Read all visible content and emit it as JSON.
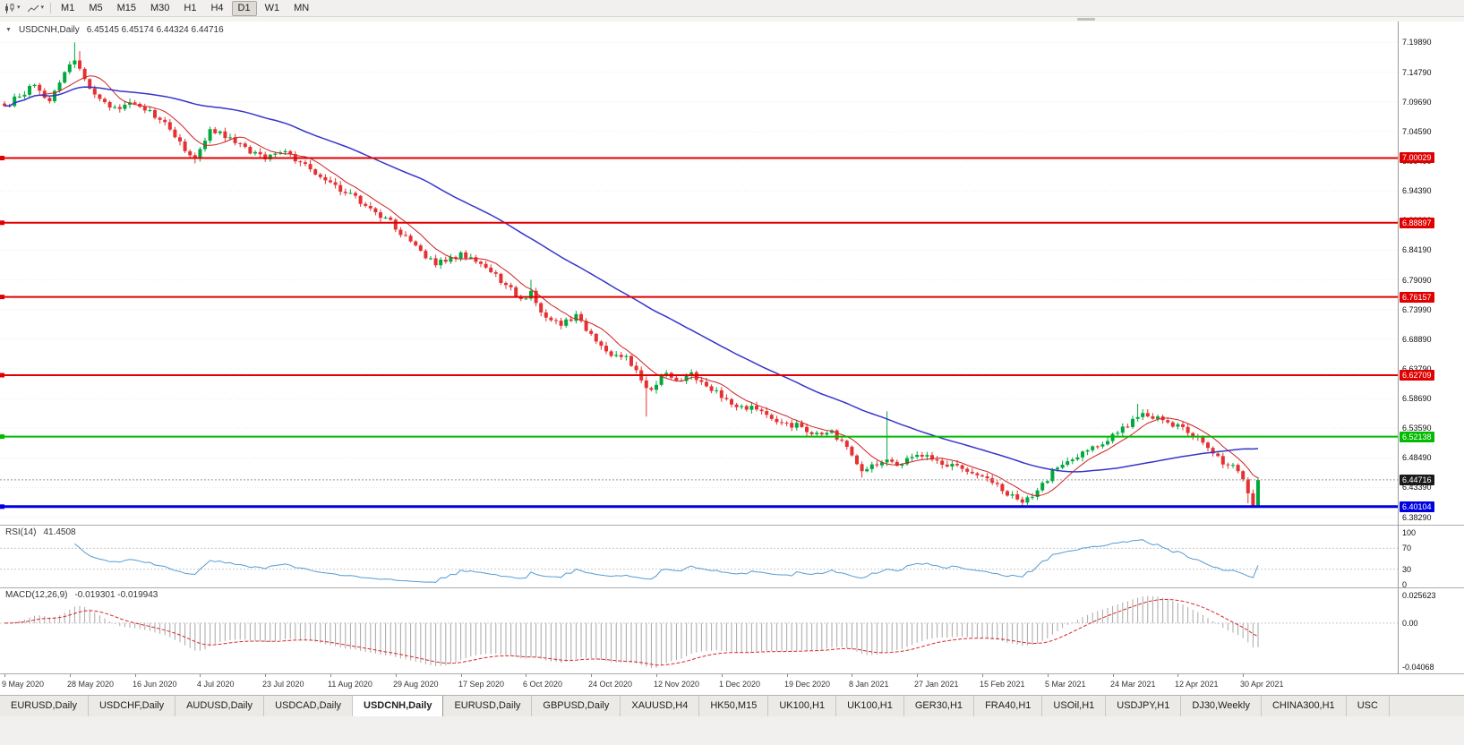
{
  "toolbar": {
    "timeframes": [
      "M1",
      "M5",
      "M15",
      "M30",
      "H1",
      "H4",
      "D1",
      "W1",
      "MN"
    ],
    "active_timeframe": "D1",
    "chart_type_icon": "candlestick-chart",
    "dropdown_icon": "▾"
  },
  "window": {
    "symbol_header": {
      "collapse_icon": "▼",
      "title": "USDCNH,Daily",
      "ohlc_text": "6.45145 6.45174 6.44324 6.44716"
    }
  },
  "indicator_labels": {
    "rsi": {
      "name": "RSI(14)",
      "value": "41.4508"
    },
    "macd": {
      "name": "MACD(12,26,9)",
      "values": "-0.019301 -0.019943"
    }
  },
  "price_axis": {
    "ticks": [
      "7.19890",
      "7.14790",
      "7.09690",
      "7.04590",
      "6.99490",
      "6.94390",
      "6.89290",
      "6.84190",
      "6.79090",
      "6.73990",
      "6.68890",
      "6.63790",
      "6.58690",
      "6.53590",
      "6.48490",
      "6.43390",
      "6.38290"
    ],
    "current_price": {
      "value": "6.44716",
      "bg": "#1a1a1a"
    }
  },
  "chart_data": {
    "type": "candlestick",
    "symbol": "USDCNH",
    "timeframe": "Daily",
    "current_ohlc": {
      "open": 6.45145,
      "high": 6.45174,
      "low": 6.44324,
      "close": 6.44716
    },
    "price_range_visible": [
      6.37,
      7.235
    ],
    "bar_count": 251,
    "noise": 0.013,
    "up_color": "#00a83e",
    "down_color": "#e53131",
    "close_anchors": [
      [
        0,
        7.09
      ],
      [
        3,
        7.106
      ],
      [
        6,
        7.126
      ],
      [
        9,
        7.098
      ],
      [
        12,
        7.148
      ],
      [
        14,
        7.168
      ],
      [
        16,
        7.136
      ],
      [
        19,
        7.102
      ],
      [
        22,
        7.088
      ],
      [
        25,
        7.096
      ],
      [
        28,
        7.082
      ],
      [
        32,
        7.062
      ],
      [
        36,
        7.012
      ],
      [
        38,
        7.0
      ],
      [
        41,
        7.05
      ],
      [
        45,
        7.036
      ],
      [
        49,
        7.008
      ],
      [
        52,
        6.998
      ],
      [
        56,
        7.012
      ],
      [
        60,
        6.99
      ],
      [
        64,
        6.962
      ],
      [
        68,
        6.94
      ],
      [
        72,
        6.918
      ],
      [
        76,
        6.898
      ],
      [
        79,
        6.868
      ],
      [
        82,
        6.85
      ],
      [
        86,
        6.816
      ],
      [
        89,
        6.83
      ],
      [
        91,
        6.838
      ],
      [
        94,
        6.822
      ],
      [
        97,
        6.804
      ],
      [
        100,
        6.782
      ],
      [
        103,
        6.758
      ],
      [
        105,
        6.772
      ],
      [
        108,
        6.726
      ],
      [
        111,
        6.712
      ],
      [
        114,
        6.732
      ],
      [
        117,
        6.698
      ],
      [
        120,
        6.668
      ],
      [
        124,
        6.66
      ],
      [
        127,
        6.618
      ],
      [
        129,
        6.602
      ],
      [
        131,
        6.628
      ],
      [
        134,
        6.618
      ],
      [
        137,
        6.632
      ],
      [
        140,
        6.608
      ],
      [
        143,
        6.588
      ],
      [
        146,
        6.572
      ],
      [
        150,
        6.568
      ],
      [
        153,
        6.552
      ],
      [
        156,
        6.545
      ],
      [
        159,
        6.538
      ],
      [
        162,
        6.528
      ],
      [
        165,
        6.532
      ],
      [
        168,
        6.504
      ],
      [
        171,
        6.462
      ],
      [
        174,
        6.472
      ],
      [
        176,
        6.482
      ],
      [
        179,
        6.474
      ],
      [
        182,
        6.49
      ],
      [
        185,
        6.482
      ],
      [
        188,
        6.47
      ],
      [
        191,
        6.466
      ],
      [
        194,
        6.455
      ],
      [
        197,
        6.442
      ],
      [
        200,
        6.42
      ],
      [
        203,
        6.408
      ],
      [
        205,
        6.418
      ],
      [
        207,
        6.442
      ],
      [
        210,
        6.468
      ],
      [
        213,
        6.482
      ],
      [
        216,
        6.498
      ],
      [
        219,
        6.508
      ],
      [
        222,
        6.528
      ],
      [
        225,
        6.552
      ],
      [
        227,
        6.562
      ],
      [
        229,
        6.552
      ],
      [
        232,
        6.546
      ],
      [
        235,
        6.538
      ],
      [
        238,
        6.52
      ],
      [
        240,
        6.502
      ],
      [
        242,
        6.488
      ],
      [
        244,
        6.472
      ],
      [
        246,
        6.462
      ],
      [
        247,
        6.448
      ],
      [
        248,
        6.424
      ],
      [
        249,
        6.403
      ],
      [
        250,
        6.44716
      ]
    ],
    "wick_overrides": [
      {
        "i": 14,
        "h": 7.199
      },
      {
        "i": 15,
        "h": 7.184
      },
      {
        "i": 38,
        "l": 6.991
      },
      {
        "i": 105,
        "h": 6.791
      },
      {
        "i": 128,
        "l": 6.556
      },
      {
        "i": 171,
        "l": 6.451
      },
      {
        "i": 176,
        "h": 6.565
      },
      {
        "i": 203,
        "l": 6.401
      },
      {
        "i": 204,
        "l": 6.404
      },
      {
        "i": 226,
        "h": 6.578
      },
      {
        "i": 248,
        "l": 6.407
      },
      {
        "i": 249,
        "l": 6.4
      },
      {
        "i": 250,
        "h": 6.4517,
        "l": 6.4432
      }
    ],
    "horizontal_lines": [
      {
        "price": 7.00029,
        "label": "7.00029",
        "color": "#e00000",
        "width": 2
      },
      {
        "price": 6.88897,
        "label": "6.88897",
        "color": "#e00000",
        "width": 2
      },
      {
        "price": 6.76157,
        "label": "6.76157",
        "color": "#e00000",
        "width": 2
      },
      {
        "price": 6.62709,
        "label": "6.62709",
        "color": "#e00000",
        "width": 2
      },
      {
        "price": 6.52138,
        "label": "6.52138",
        "color": "#00bb00",
        "width": 2
      },
      {
        "price": 6.40104,
        "label": "6.40104",
        "color": "#0000e0",
        "width": 3
      }
    ],
    "moving_averages": [
      {
        "period": 8,
        "color": "#d02020",
        "width": 1
      },
      {
        "period": 45,
        "color": "#3535cc",
        "width": 1.5
      }
    ],
    "x_labels": [
      {
        "bar": 0,
        "label": "9 May 2020"
      },
      {
        "bar": 13,
        "label": "28 May 2020"
      },
      {
        "bar": 26,
        "label": "16 Jun 2020"
      },
      {
        "bar": 39,
        "label": "4 Jul 2020"
      },
      {
        "bar": 52,
        "label": "23 Jul 2020"
      },
      {
        "bar": 65,
        "label": "11 Aug 2020"
      },
      {
        "bar": 78,
        "label": "29 Aug 2020"
      },
      {
        "bar": 91,
        "label": "17 Sep 2020"
      },
      {
        "bar": 104,
        "label": "6 Oct 2020"
      },
      {
        "bar": 117,
        "label": "24 Oct 2020"
      },
      {
        "bar": 130,
        "label": "12 Nov 2020"
      },
      {
        "bar": 143,
        "label": "1 Dec 2020"
      },
      {
        "bar": 156,
        "label": "19 Dec 2020"
      },
      {
        "bar": 169,
        "label": "8 Jan 2021"
      },
      {
        "bar": 182,
        "label": "27 Jan 2021"
      },
      {
        "bar": 195,
        "label": "15 Feb 2021"
      },
      {
        "bar": 208,
        "label": "5 Mar 2021"
      },
      {
        "bar": 221,
        "label": "24 Mar 2021"
      },
      {
        "bar": 234,
        "label": "12 Apr 2021"
      },
      {
        "bar": 247,
        "label": "30 Apr 2021"
      }
    ],
    "rsi": {
      "period": 14,
      "current": "41.4508",
      "color": "#569bd2",
      "levels": [
        70,
        30
      ],
      "axis_labels": [
        {
          "v": 100,
          "label": "100"
        },
        {
          "v": 70,
          "label": "70"
        },
        {
          "v": 30,
          "label": "30"
        },
        {
          "v": 0,
          "label": "0"
        }
      ]
    },
    "macd": {
      "fast": 12,
      "slow": 26,
      "signal": 9,
      "current_macd": "-0.019301",
      "current_signal": "-0.019943",
      "hist_color": "#a8a8a8",
      "signal_color": "#d42a2a",
      "axis": [
        {
          "v": 0.025623,
          "label": "0.025623"
        },
        {
          "v": 0,
          "label": "0.00"
        },
        {
          "v": -0.04068,
          "label": "-0.04068"
        }
      ]
    }
  },
  "tabs": [
    {
      "label": "EURUSD,Daily"
    },
    {
      "label": "USDCHF,Daily"
    },
    {
      "label": "AUDUSD,Daily"
    },
    {
      "label": "USDCAD,Daily"
    },
    {
      "label": "USDCNH,Daily",
      "active": true
    },
    {
      "label": "EURUSD,Daily"
    },
    {
      "label": "GBPUSD,Daily"
    },
    {
      "label": "XAUUSD,H4"
    },
    {
      "label": "HK50,M15"
    },
    {
      "label": "UK100,H1"
    },
    {
      "label": "UK100,H1"
    },
    {
      "label": "GER30,H1"
    },
    {
      "label": "FRA40,H1"
    },
    {
      "label": "USOil,H1"
    },
    {
      "label": "USDJPY,H1"
    },
    {
      "label": "DJ30,Weekly"
    },
    {
      "label": "CHINA300,H1"
    },
    {
      "label": "USC"
    }
  ]
}
